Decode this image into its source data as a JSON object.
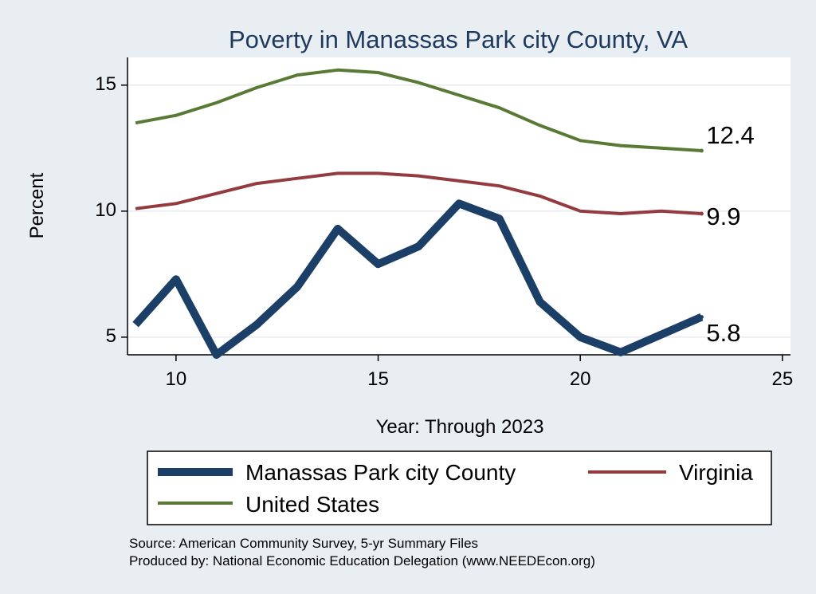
{
  "chart_data": {
    "type": "line",
    "title": "Poverty in Manassas Park city County, VA",
    "xlabel": "Year: Through 2023",
    "ylabel": "Percent",
    "xlim": [
      8.8,
      25.2
    ],
    "ylim": [
      4.3,
      16.1
    ],
    "xticks": [
      10,
      15,
      20,
      25
    ],
    "yticks": [
      5,
      10,
      15
    ],
    "x": [
      9,
      10,
      11,
      12,
      13,
      14,
      15,
      16,
      17,
      18,
      19,
      20,
      21,
      22,
      23
    ],
    "series": [
      {
        "name": "Manassas Park city County",
        "color": "#1b3f66",
        "values": [
          5.5,
          7.3,
          4.3,
          5.5,
          7.0,
          9.3,
          7.9,
          8.6,
          10.3,
          9.7,
          6.4,
          5.0,
          4.4,
          5.1,
          5.8
        ],
        "end_label": "5.8"
      },
      {
        "name": "Virginia",
        "color": "#933b3f",
        "values": [
          10.1,
          10.3,
          10.7,
          11.1,
          11.3,
          11.5,
          11.5,
          11.4,
          11.2,
          11.0,
          10.6,
          10.0,
          9.9,
          10.0,
          9.9
        ],
        "end_label": "9.9"
      },
      {
        "name": "United States",
        "color": "#587a34",
        "values": [
          13.5,
          13.8,
          14.3,
          14.9,
          15.4,
          15.6,
          15.5,
          15.1,
          14.6,
          14.1,
          13.4,
          12.8,
          12.6,
          12.5,
          12.4
        ],
        "end_label": "12.4"
      }
    ],
    "grid": true,
    "legend_position": "bottom"
  },
  "source": {
    "line1": "Source: American Community Survey, 5-yr Summary Files",
    "line2": "Produced by: National Economic Education Delegation (www.NEEDEcon.org)"
  }
}
